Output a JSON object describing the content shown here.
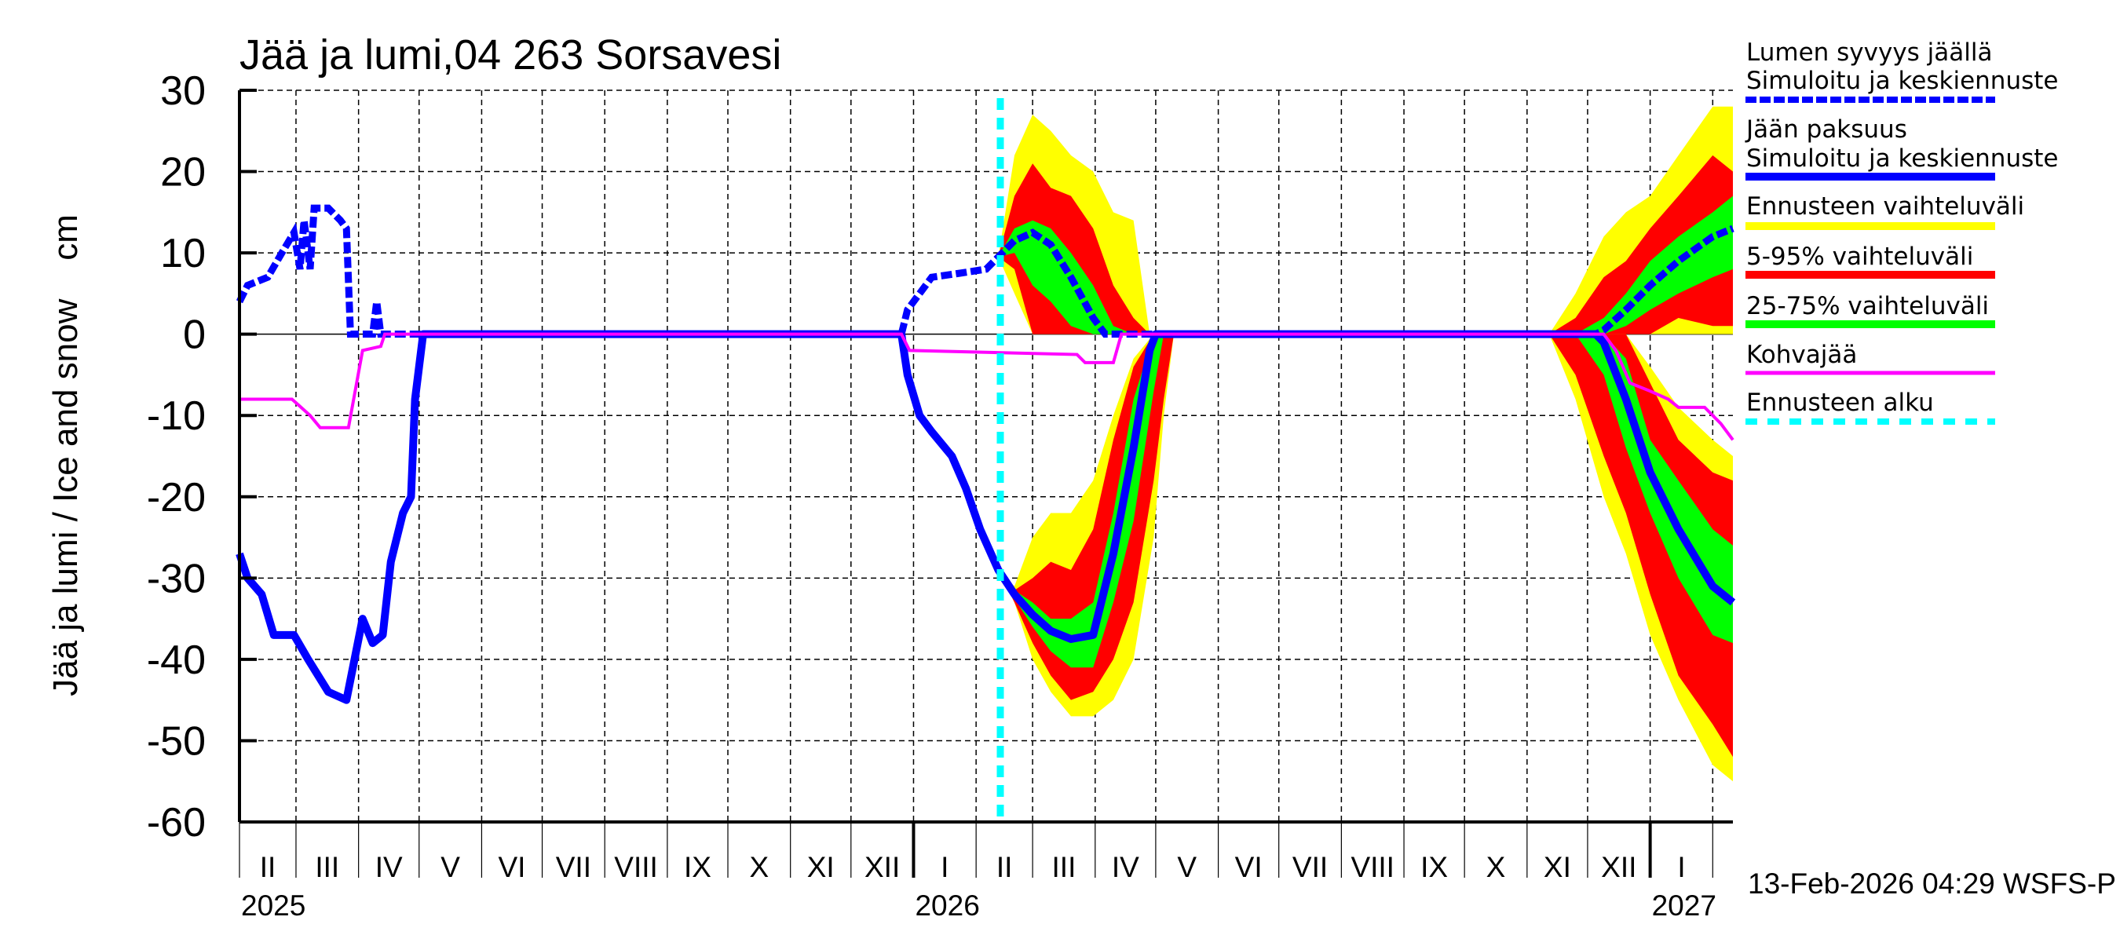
{
  "chart_data": {
    "type": "area",
    "title": "Jää ja lumi,04 263 Sorsavesi",
    "ylabel": "Jää ja lumi / Ice and snow    cm",
    "ylim": [
      -60,
      30
    ],
    "yticks": [
      "30",
      "20",
      "10",
      "0",
      "-10",
      "-20",
      "-30",
      "-40",
      "-50",
      "-60"
    ],
    "xlim": [
      "2025-02-01",
      "2027-02-11"
    ],
    "month_labels": [
      "II",
      "III",
      "IV",
      "V",
      "VI",
      "VII",
      "VIII",
      "IX",
      "X",
      "XI",
      "XII",
      "I",
      "II",
      "III",
      "IV",
      "V",
      "VI",
      "VII",
      "VIII",
      "IX",
      "X",
      "XI",
      "XII",
      "I"
    ],
    "year_labels": [
      "2025",
      "2026",
      "2027"
    ],
    "grid": true,
    "forecast_start": "2026-02-13",
    "timestamp": "13-Feb-2026 04:29 WSFS-P",
    "legend": {
      "placement": "right",
      "items": [
        {
          "label1": "Lumen syvyys jäällä",
          "label2": "Simuloitu ja keskiennuste",
          "color": "#0000ff",
          "style": "dashed"
        },
        {
          "label1": "Jään paksuus",
          "label2": "Simuloitu ja keskiennuste",
          "color": "#0000ff",
          "style": "solid"
        },
        {
          "label1": "Ennusteen vaihteluväli",
          "color": "#ffff00",
          "style": "band"
        },
        {
          "label1": "5-95% vaihteluväli",
          "color": "#ff0000",
          "style": "band"
        },
        {
          "label1": "25-75% vaihteluväli",
          "color": "#00ff00",
          "style": "band"
        },
        {
          "label1": "Kohvajää",
          "color": "#ff00ff",
          "style": "thin"
        },
        {
          "label1": "Ennusteen alku",
          "color": "#00ffff",
          "style": "dotted"
        }
      ]
    },
    "colors": {
      "snow": "#0000ff",
      "ice": "#0000ff",
      "range": "#ffff00",
      "p5_95": "#ff0000",
      "p25_75": "#00ff00",
      "kohvajaa": "#ff00ff",
      "forecast_start": "#00ffff"
    },
    "series": {
      "snow_depth": [
        [
          "2025-02-01",
          4
        ],
        [
          "2025-02-05",
          6
        ],
        [
          "2025-02-15",
          7
        ],
        [
          "2025-02-22",
          10
        ],
        [
          "2025-02-28",
          12.5
        ],
        [
          "2025-03-03",
          8
        ],
        [
          "2025-03-05",
          14
        ],
        [
          "2025-03-08",
          8
        ],
        [
          "2025-03-10",
          15.5
        ],
        [
          "2025-03-17",
          15.5
        ],
        [
          "2025-03-23",
          14
        ],
        [
          "2025-03-26",
          13
        ],
        [
          "2025-03-28",
          0
        ],
        [
          "2025-04-08",
          0
        ],
        [
          "2025-04-10",
          4
        ],
        [
          "2025-04-12",
          0
        ],
        [
          "2025-12-26",
          0
        ],
        [
          "2025-12-29",
          3
        ],
        [
          "2026-01-04",
          5
        ],
        [
          "2026-01-10",
          7
        ],
        [
          "2026-01-24",
          7.5
        ],
        [
          "2026-02-06",
          8
        ],
        [
          "2026-02-12",
          9.5
        ],
        [
          "2026-02-20",
          11.5
        ],
        [
          "2026-03-01",
          12.5
        ],
        [
          "2026-03-10",
          11
        ],
        [
          "2026-03-20",
          7
        ],
        [
          "2026-03-31",
          2
        ],
        [
          "2026-04-06",
          0
        ],
        [
          "2026-12-05",
          0
        ],
        [
          "2026-12-09",
          0.5
        ],
        [
          "2026-12-20",
          3
        ],
        [
          "2027-01-01",
          6
        ],
        [
          "2027-01-15",
          9
        ],
        [
          "2027-02-01",
          12
        ],
        [
          "2027-02-11",
          13
        ]
      ],
      "ice_thickness": [
        [
          "2025-02-01",
          -27
        ],
        [
          "2025-02-05",
          -30
        ],
        [
          "2025-02-12",
          -32
        ],
        [
          "2025-02-18",
          -37
        ],
        [
          "2025-02-28",
          -37
        ],
        [
          "2025-03-07",
          -40
        ],
        [
          "2025-03-17",
          -44
        ],
        [
          "2025-03-26",
          -45
        ],
        [
          "2025-03-30",
          -40
        ],
        [
          "2025-04-03",
          -35
        ],
        [
          "2025-04-08",
          -38
        ],
        [
          "2025-04-13",
          -37
        ],
        [
          "2025-04-17",
          -28
        ],
        [
          "2025-04-23",
          -22
        ],
        [
          "2025-04-27",
          -20
        ],
        [
          "2025-04-29",
          -8
        ],
        [
          "2025-05-03",
          0
        ],
        [
          "2025-12-26",
          0
        ],
        [
          "2025-12-29",
          -5
        ],
        [
          "2026-01-04",
          -10
        ],
        [
          "2026-01-10",
          -12
        ],
        [
          "2026-01-20",
          -15
        ],
        [
          "2026-01-27",
          -19
        ],
        [
          "2026-02-03",
          -24
        ],
        [
          "2026-02-12",
          -29
        ],
        [
          "2026-02-20",
          -32
        ],
        [
          "2026-03-01",
          -34.5
        ],
        [
          "2026-03-10",
          -36.5
        ],
        [
          "2026-03-20",
          -37.5
        ],
        [
          "2026-03-31",
          -37
        ],
        [
          "2026-04-10",
          -27
        ],
        [
          "2026-04-20",
          -14
        ],
        [
          "2026-04-28",
          -2
        ],
        [
          "2026-05-01",
          0
        ],
        [
          "2026-12-05",
          0
        ],
        [
          "2026-12-09",
          -1
        ],
        [
          "2026-12-20",
          -8
        ],
        [
          "2027-01-01",
          -17
        ],
        [
          "2027-01-15",
          -24
        ],
        [
          "2027-02-01",
          -31
        ],
        [
          "2027-02-11",
          -33
        ]
      ],
      "kohvajaa": [
        [
          "2025-02-01",
          -8
        ],
        [
          "2025-02-27",
          -8
        ],
        [
          "2025-03-08",
          -10
        ],
        [
          "2025-03-13",
          -11.5
        ],
        [
          "2025-03-27",
          -11.5
        ],
        [
          "2025-04-03",
          -2
        ],
        [
          "2025-04-12",
          -1.5
        ],
        [
          "2025-04-14",
          0
        ],
        [
          "2025-12-26",
          0
        ],
        [
          "2025-12-30",
          -2
        ],
        [
          "2026-03-23",
          -2.5
        ],
        [
          "2026-03-27",
          -3.5
        ],
        [
          "2026-04-10",
          -3.5
        ],
        [
          "2026-04-14",
          0
        ],
        [
          "2026-12-09",
          0
        ],
        [
          "2026-12-15",
          -2
        ],
        [
          "2026-12-22",
          -6
        ],
        [
          "2027-01-01",
          -7
        ],
        [
          "2027-01-10",
          -8
        ],
        [
          "2027-01-15",
          -9
        ],
        [
          "2027-01-28",
          -9
        ],
        [
          "2027-02-05",
          -11
        ],
        [
          "2027-02-11",
          -13
        ]
      ]
    },
    "bands": [
      {
        "name": "ice_2026",
        "points": [
          {
            "date": "2026-02-12",
            "range": [
              -29,
              -29
            ],
            "p5_95": [
              -29,
              -29
            ],
            "p25_75": [
              -29,
              -29
            ]
          },
          {
            "date": "2026-02-20",
            "range": [
              -33,
              -31
            ],
            "p5_95": [
              -33,
              -31.5
            ],
            "p25_75": [
              -32.5,
              -31.5
            ]
          },
          {
            "date": "2026-03-01",
            "range": [
              -40,
              -25
            ],
            "p5_95": [
              -38,
              -30
            ],
            "p25_75": [
              -36,
              -33
            ]
          },
          {
            "date": "2026-03-10",
            "range": [
              -44,
              -22
            ],
            "p5_95": [
              -42,
              -28
            ],
            "p25_75": [
              -39,
              -35
            ]
          },
          {
            "date": "2026-03-20",
            "range": [
              -47,
              -22
            ],
            "p5_95": [
              -45,
              -29
            ],
            "p25_75": [
              -41,
              -35
            ]
          },
          {
            "date": "2026-03-31",
            "range": [
              -47,
              -18
            ],
            "p5_95": [
              -44,
              -24
            ],
            "p25_75": [
              -41,
              -33
            ]
          },
          {
            "date": "2026-04-10",
            "range": [
              -45,
              -10
            ],
            "p5_95": [
              -40,
              -13
            ],
            "p25_75": [
              -33,
              -22
            ]
          },
          {
            "date": "2026-04-20",
            "range": [
              -40,
              -3
            ],
            "p5_95": [
              -33,
              -4
            ],
            "p25_75": [
              -23,
              -8
            ]
          },
          {
            "date": "2026-04-30",
            "range": [
              -25,
              0
            ],
            "p5_95": [
              -18,
              0
            ],
            "p25_75": [
              -7,
              0
            ]
          },
          {
            "date": "2026-05-05",
            "range": [
              -10,
              0
            ],
            "p5_95": [
              -8,
              0
            ],
            "p25_75": [
              0,
              0
            ]
          },
          {
            "date": "2026-05-10",
            "range": [
              0,
              0
            ],
            "p5_95": [
              0,
              0
            ],
            "p25_75": [
              0,
              0
            ]
          }
        ]
      },
      {
        "name": "snow_2026",
        "points": [
          {
            "date": "2026-02-12",
            "range": [
              9.5,
              9.5
            ],
            "p5_95": [
              9.5,
              9.5
            ],
            "p25_75": [
              9.5,
              9.5
            ]
          },
          {
            "date": "2026-02-20",
            "range": [
              5,
              22
            ],
            "p5_95": [
              8,
              17
            ],
            "p25_75": [
              10,
              13
            ]
          },
          {
            "date": "2026-03-01",
            "range": [
              0,
              27
            ],
            "p5_95": [
              0,
              21
            ],
            "p25_75": [
              6,
              14
            ]
          },
          {
            "date": "2026-03-10",
            "range": [
              0,
              25
            ],
            "p5_95": [
              0,
              18
            ],
            "p25_75": [
              4,
              13
            ]
          },
          {
            "date": "2026-03-20",
            "range": [
              0,
              22
            ],
            "p5_95": [
              0,
              17
            ],
            "p25_75": [
              1,
              10
            ]
          },
          {
            "date": "2026-03-31",
            "range": [
              0,
              20
            ],
            "p5_95": [
              0,
              13
            ],
            "p25_75": [
              0,
              6
            ]
          },
          {
            "date": "2026-04-10",
            "range": [
              0,
              15
            ],
            "p5_95": [
              0,
              6
            ],
            "p25_75": [
              0,
              1
            ]
          },
          {
            "date": "2026-04-20",
            "range": [
              0,
              14
            ],
            "p5_95": [
              0,
              2
            ],
            "p25_75": [
              0,
              0
            ]
          },
          {
            "date": "2026-04-28",
            "range": [
              0,
              0
            ],
            "p5_95": [
              0,
              0
            ],
            "p25_75": [
              0,
              0
            ]
          }
        ]
      },
      {
        "name": "ice_2027",
        "points": [
          {
            "date": "2026-11-12",
            "range": [
              0,
              0
            ],
            "p5_95": [
              0,
              0
            ],
            "p25_75": [
              0,
              0
            ]
          },
          {
            "date": "2026-11-25",
            "range": [
              -8,
              0
            ],
            "p5_95": [
              -5,
              0
            ],
            "p25_75": [
              0,
              0
            ]
          },
          {
            "date": "2026-12-09",
            "range": [
              -20,
              0
            ],
            "p5_95": [
              -15,
              0
            ],
            "p25_75": [
              -5,
              0
            ]
          },
          {
            "date": "2026-12-20",
            "range": [
              -27,
              0
            ],
            "p5_95": [
              -22,
              0
            ],
            "p25_75": [
              -14,
              -3
            ]
          },
          {
            "date": "2027-01-01",
            "range": [
              -37,
              -4
            ],
            "p5_95": [
              -32,
              -6
            ],
            "p25_75": [
              -22,
              -13
            ]
          },
          {
            "date": "2027-01-15",
            "range": [
              -45,
              -9
            ],
            "p5_95": [
              -42,
              -13
            ],
            "p25_75": [
              -30,
              -18
            ]
          },
          {
            "date": "2027-02-01",
            "range": [
              -53,
              -13
            ],
            "p5_95": [
              -48,
              -17
            ],
            "p25_75": [
              -37,
              -24
            ]
          },
          {
            "date": "2027-02-11",
            "range": [
              -55,
              -15
            ],
            "p5_95": [
              -52,
              -18
            ],
            "p25_75": [
              -38,
              -26
            ]
          }
        ]
      },
      {
        "name": "snow_2027",
        "points": [
          {
            "date": "2026-11-12",
            "range": [
              0,
              0
            ],
            "p5_95": [
              0,
              0
            ],
            "p25_75": [
              0,
              0
            ]
          },
          {
            "date": "2026-11-25",
            "range": [
              0,
              5
            ],
            "p5_95": [
              0,
              2
            ],
            "p25_75": [
              0,
              0
            ]
          },
          {
            "date": "2026-12-09",
            "range": [
              0,
              12
            ],
            "p5_95": [
              0,
              7
            ],
            "p25_75": [
              0,
              2
            ]
          },
          {
            "date": "2026-12-20",
            "range": [
              0,
              15
            ],
            "p5_95": [
              0,
              9
            ],
            "p25_75": [
              1,
              5
            ]
          },
          {
            "date": "2027-01-01",
            "range": [
              0,
              17
            ],
            "p5_95": [
              0,
              13
            ],
            "p25_75": [
              3,
              9
            ]
          },
          {
            "date": "2027-01-15",
            "range": [
              0,
              22
            ],
            "p5_95": [
              2,
              17
            ],
            "p25_75": [
              5,
              12
            ]
          },
          {
            "date": "2027-02-01",
            "range": [
              0,
              28
            ],
            "p5_95": [
              1,
              22
            ],
            "p25_75": [
              7,
              15
            ]
          },
          {
            "date": "2027-02-11",
            "range": [
              0,
              28
            ],
            "p5_95": [
              1,
              20
            ],
            "p25_75": [
              8,
              17
            ]
          }
        ]
      }
    ]
  }
}
